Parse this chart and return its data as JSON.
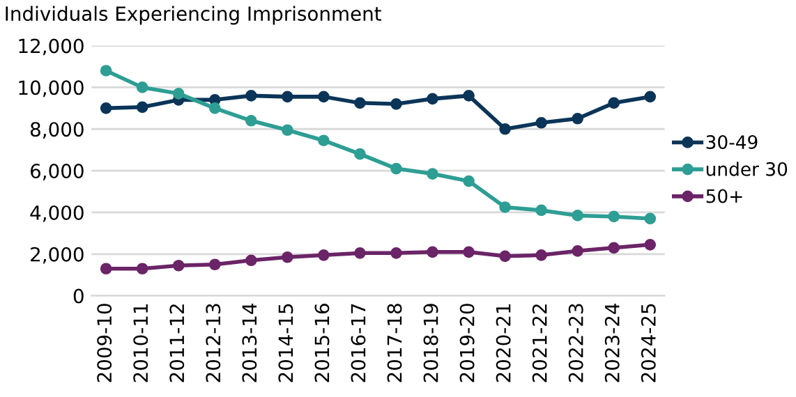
{
  "chart_data": {
    "type": "line",
    "title": "Individuals Experiencing Imprisonment",
    "categories": [
      "2009-10",
      "2010-11",
      "2011-12",
      "2012-13",
      "2013-14",
      "2014-15",
      "2015-16",
      "2016-17",
      "2017-18",
      "2018-19",
      "2019-20",
      "2020-21",
      "2021-22",
      "2022-23",
      "2023-24",
      "2024-25"
    ],
    "series": [
      {
        "name": "30-49",
        "color": "#0b3558",
        "values": [
          9000,
          9050,
          9400,
          9400,
          9600,
          9550,
          9550,
          9250,
          9200,
          9450,
          9600,
          8000,
          8300,
          8500,
          9250,
          9550
        ]
      },
      {
        "name": "under 30",
        "color": "#2e9e94",
        "values": [
          10800,
          10000,
          9700,
          9000,
          8400,
          7950,
          7450,
          6800,
          6100,
          5850,
          5500,
          4250,
          4100,
          3850,
          3800,
          3700
        ]
      },
      {
        "name": "50+",
        "color": "#6b2467",
        "values": [
          1300,
          1300,
          1450,
          1500,
          1700,
          1850,
          1950,
          2050,
          2050,
          2100,
          2100,
          1900,
          1950,
          2150,
          2300,
          2450
        ]
      }
    ],
    "ylim": [
      0,
      12000
    ],
    "yticks": [
      {
        "value": 0,
        "label": "0"
      },
      {
        "value": 2000,
        "label": "2,000"
      },
      {
        "value": 4000,
        "label": "4,000"
      },
      {
        "value": 6000,
        "label": "6,000"
      },
      {
        "value": 8000,
        "label": "8,000"
      },
      {
        "value": 10000,
        "label": "10,000"
      },
      {
        "value": 12000,
        "label": "12,000"
      }
    ],
    "grid": "y",
    "legend": "right",
    "marker": "circle",
    "line_style": "solid"
  }
}
